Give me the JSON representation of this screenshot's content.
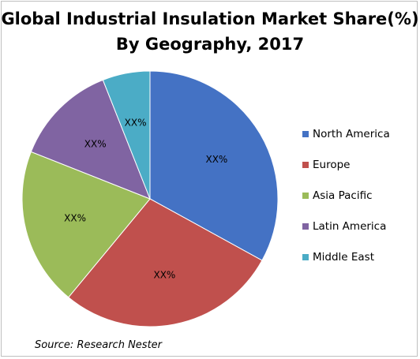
{
  "chart_data": {
    "type": "pie",
    "title_line1": "Global Industrial Insulation Market Share(%)",
    "title_line2": "By Geography, 2017",
    "categories": [
      "North America",
      "Europe",
      "Asia Pacific",
      "Latin America",
      "Middle East"
    ],
    "values": [
      33,
      28,
      20,
      13,
      6
    ],
    "slice_labels": [
      "XX%",
      "XX%",
      "XX%",
      "XX%",
      "XX%"
    ],
    "colors": [
      "#4472c4",
      "#c0504d",
      "#9bbb59",
      "#8064a2",
      "#4bacc6"
    ],
    "legend_position": "right",
    "start_angle": "top",
    "direction": "clockwise"
  },
  "legend": {
    "items": [
      {
        "label": "North America",
        "color": "#4472c4"
      },
      {
        "label": "Europe",
        "color": "#c0504d"
      },
      {
        "label": "Asia Pacific",
        "color": "#9bbb59"
      },
      {
        "label": "Latin America",
        "color": "#8064a2"
      },
      {
        "label": "Middle East",
        "color": "#4bacc6"
      }
    ]
  },
  "source": "Source: Research Nester"
}
